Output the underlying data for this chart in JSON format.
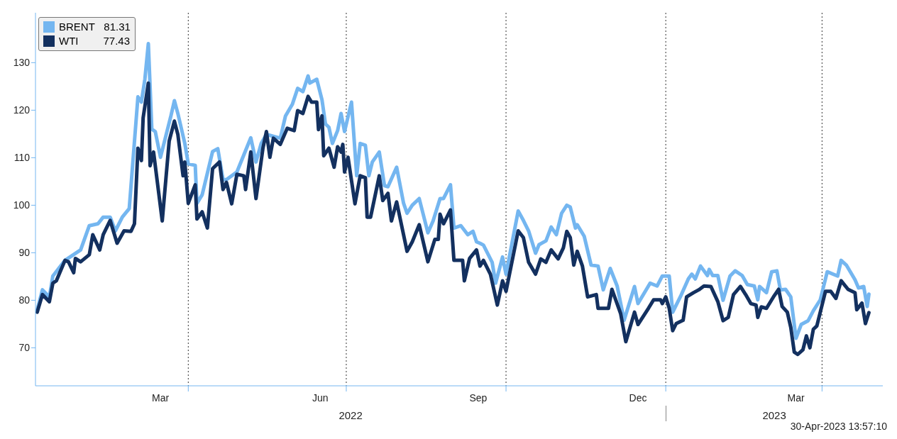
{
  "chart_data": {
    "type": "line",
    "xlim": [
      "2022-01-03",
      "2023-05-06"
    ],
    "xticks": [
      {
        "value": "2022-03-16",
        "label": "Mar"
      },
      {
        "value": "2022-04-01",
        "label": null
      },
      {
        "value": "2022-06-16",
        "label": "Jun"
      },
      {
        "value": "2022-07-01",
        "label": null
      },
      {
        "value": "2022-09-15",
        "label": "Sep"
      },
      {
        "value": "2022-10-01",
        "label": null
      },
      {
        "value": "2022-12-16",
        "label": "Dec"
      },
      {
        "value": "2023-01-01",
        "label": null
      },
      {
        "value": "2023-03-17",
        "label": "Mar"
      },
      {
        "value": "2023-04-01",
        "label": null
      }
    ],
    "ylim": [
      62,
      140.5
    ],
    "yticks": [
      70,
      80,
      90,
      100,
      110,
      120,
      130
    ],
    "grid": true,
    "legend": "top left",
    "annotations": [
      "2022",
      "2023",
      "81.31",
      "77.43",
      "30-Apr-2023 13:57:10"
    ],
    "series": [
      {
        "name": "BRENT",
        "color": "#74b6f0",
        "x": [
          "2022-01-04",
          "2022-01-07",
          "2022-01-11",
          "2022-01-13",
          "2022-01-20",
          "2022-01-29",
          "2022-02-03",
          "2022-02-08",
          "2022-02-11",
          "2022-02-15",
          "2022-02-18",
          "2022-02-22",
          "2022-02-26",
          "2022-03-03",
          "2022-03-05",
          "2022-03-07",
          "2022-03-09",
          "2022-03-11",
          "2022-03-13",
          "2022-03-16",
          "2022-03-22",
          "2022-03-24",
          "2022-03-26",
          "2022-03-30",
          "2022-04-01",
          "2022-04-05",
          "2022-04-06",
          "2022-04-09",
          "2022-04-15",
          "2022-04-18",
          "2022-04-21",
          "2022-04-23",
          "2022-04-29",
          "2022-05-07",
          "2022-05-10",
          "2022-05-13",
          "2022-05-16",
          "2022-05-20",
          "2022-05-24",
          "2022-05-27",
          "2022-05-31",
          "2022-06-03",
          "2022-06-06",
          "2022-06-09",
          "2022-06-10",
          "2022-06-14",
          "2022-06-17",
          "2022-06-19",
          "2022-06-21",
          "2022-06-23",
          "2022-06-26",
          "2022-06-28",
          "2022-06-30",
          "2022-07-04",
          "2022-07-07",
          "2022-07-09",
          "2022-07-12",
          "2022-07-14",
          "2022-07-16",
          "2022-07-20",
          "2022-07-23",
          "2022-07-25",
          "2022-07-30",
          "2022-08-03",
          "2022-08-05",
          "2022-08-08",
          "2022-08-12",
          "2022-08-17",
          "2022-08-20",
          "2022-08-24",
          "2022-08-26",
          "2022-08-30",
          "2022-09-01",
          "2022-09-05",
          "2022-09-09",
          "2022-09-12",
          "2022-09-14",
          "2022-09-16",
          "2022-09-18",
          "2022-09-23",
          "2022-09-25",
          "2022-09-29",
          "2022-10-01",
          "2022-10-08",
          "2022-10-11",
          "2022-10-14",
          "2022-10-18",
          "2022-10-20",
          "2022-10-24",
          "2022-10-27",
          "2022-10-30",
          "2022-11-02",
          "2022-11-05",
          "2022-11-07",
          "2022-11-10",
          "2022-11-11",
          "2022-11-15",
          "2022-11-19",
          "2022-11-23",
          "2022-11-26",
          "2022-11-30",
          "2022-12-04",
          "2022-12-08",
          "2022-12-14",
          "2022-12-16",
          "2022-12-23",
          "2022-12-27",
          "2022-12-30",
          "2023-01-03",
          "2023-01-05",
          "2023-01-10",
          "2023-01-14",
          "2023-01-16",
          "2023-01-18",
          "2023-01-21",
          "2023-01-25",
          "2023-01-26",
          "2023-01-28",
          "2023-01-31",
          "2023-02-03",
          "2023-02-07",
          "2023-02-10",
          "2023-02-14",
          "2023-02-17",
          "2023-02-21",
          "2023-02-23",
          "2023-02-24",
          "2023-02-28",
          "2023-03-03",
          "2023-03-06",
          "2023-03-08",
          "2023-03-11",
          "2023-03-14",
          "2023-03-17",
          "2023-03-20",
          "2023-03-24",
          "2023-03-27",
          "2023-03-31",
          "2023-04-04",
          "2023-04-10",
          "2023-04-12",
          "2023-04-15",
          "2023-04-20",
          "2023-04-22",
          "2023-04-25",
          "2023-04-27",
          "2023-04-28"
        ],
        "values": [
          78,
          82.2,
          80.7,
          85.1,
          88.4,
          90.6,
          95.7,
          96.1,
          97.5,
          97.5,
          94.6,
          97.5,
          99.3,
          122.8,
          121.7,
          126.5,
          134,
          116,
          115.5,
          110.1,
          118.8,
          122,
          119.3,
          113,
          108.7,
          108.4,
          100.4,
          102.2,
          111.3,
          111.9,
          105.4,
          105.4,
          107,
          114.2,
          109.1,
          113,
          114.9,
          114.5,
          114.1,
          118.8,
          121.3,
          124.6,
          123.9,
          127.2,
          125.7,
          126.5,
          122.2,
          117.1,
          116.4,
          113,
          115.7,
          119.3,
          115.5,
          121.7,
          106.2,
          113,
          112.6,
          106.2,
          109.1,
          111.2,
          104.1,
          103.9,
          108,
          100.4,
          98.3,
          100,
          101.4,
          94.2,
          96.7,
          101.4,
          101.4,
          104.3,
          95.2,
          95.7,
          93.8,
          94.5,
          92.3,
          92,
          91.6,
          88,
          83.6,
          89.1,
          85.5,
          98.8,
          96.8,
          94.6,
          89.9,
          91.7,
          92.5,
          95.4,
          93.8,
          98.3,
          100,
          99.6,
          95.2,
          95.9,
          93.5,
          87.4,
          87.2,
          82.2,
          86.7,
          83,
          75.8,
          82.9,
          79.3,
          83.6,
          83,
          85.1,
          85.1,
          77.5,
          81.2,
          84.5,
          85.5,
          84.5,
          87.2,
          85.2,
          86.5,
          85.2,
          85.2,
          80,
          85.1,
          86.2,
          85.2,
          83.3,
          83,
          80.1,
          82.9,
          81.6,
          86,
          86.2,
          82.2,
          82.3,
          80.7,
          72,
          74.9,
          75.7,
          77.8,
          80.1,
          86,
          85.1,
          88.4,
          87.4,
          84.3,
          82.6,
          82.9,
          78.7,
          81.3
        ]
      },
      {
        "name": "WTI",
        "color": "#13305f",
        "x": [
          "2022-01-04",
          "2022-01-07",
          "2022-01-11",
          "2022-01-13",
          "2022-01-15",
          "2022-01-20",
          "2022-01-22",
          "2022-01-25",
          "2022-01-26",
          "2022-01-29",
          "2022-02-03",
          "2022-02-05",
          "2022-02-09",
          "2022-02-11",
          "2022-02-15",
          "2022-02-19",
          "2022-02-23",
          "2022-02-27",
          "2022-03-01",
          "2022-03-03",
          "2022-03-05",
          "2022-03-06",
          "2022-03-09",
          "2022-03-10",
          "2022-03-12",
          "2022-03-17",
          "2022-03-21",
          "2022-03-24",
          "2022-03-26",
          "2022-03-29",
          "2022-03-30",
          "2022-04-01",
          "2022-04-05",
          "2022-04-06",
          "2022-04-09",
          "2022-04-12",
          "2022-04-15",
          "2022-04-19",
          "2022-04-21",
          "2022-04-23",
          "2022-04-26",
          "2022-04-29",
          "2022-05-03",
          "2022-05-04",
          "2022-05-07",
          "2022-05-10",
          "2022-05-14",
          "2022-05-16",
          "2022-05-18",
          "2022-05-20",
          "2022-05-24",
          "2022-05-28",
          "2022-06-01",
          "2022-06-03",
          "2022-06-06",
          "2022-06-09",
          "2022-06-11",
          "2022-06-14",
          "2022-06-15",
          "2022-06-17",
          "2022-06-18",
          "2022-06-21",
          "2022-06-24",
          "2022-06-26",
          "2022-06-28",
          "2022-06-29",
          "2022-06-30",
          "2022-07-02",
          "2022-07-06",
          "2022-07-09",
          "2022-07-12",
          "2022-07-13",
          "2022-07-15",
          "2022-07-20",
          "2022-07-22",
          "2022-07-25",
          "2022-07-27",
          "2022-07-30",
          "2022-08-05",
          "2022-08-08",
          "2022-08-12",
          "2022-08-17",
          "2022-08-21",
          "2022-08-23",
          "2022-08-24",
          "2022-08-26",
          "2022-08-30",
          "2022-09-01",
          "2022-09-06",
          "2022-09-07",
          "2022-09-10",
          "2022-09-14",
          "2022-09-16",
          "2022-09-18",
          "2022-09-22",
          "2022-09-26",
          "2022-09-29",
          "2022-10-01",
          "2022-10-08",
          "2022-10-11",
          "2022-10-14",
          "2022-10-18",
          "2022-10-21",
          "2022-10-24",
          "2022-10-27",
          "2022-10-31",
          "2022-11-03",
          "2022-11-05",
          "2022-11-07",
          "2022-11-09",
          "2022-11-11",
          "2022-11-14",
          "2022-11-17",
          "2022-11-22",
          "2022-11-23",
          "2022-11-29",
          "2022-12-01",
          "2022-12-06",
          "2022-12-09",
          "2022-12-14",
          "2022-12-16",
          "2022-12-22",
          "2022-12-25",
          "2022-12-29",
          "2022-12-30",
          "2023-01-01",
          "2023-01-03",
          "2023-01-05",
          "2023-01-07",
          "2023-01-11",
          "2023-01-13",
          "2023-01-17",
          "2023-01-20",
          "2023-01-23",
          "2023-01-27",
          "2023-01-31",
          "2023-02-03",
          "2023-02-06",
          "2023-02-09",
          "2023-02-13",
          "2023-02-16",
          "2023-02-19",
          "2023-02-22",
          "2023-02-23",
          "2023-02-25",
          "2023-02-28",
          "2023-03-04",
          "2023-03-07",
          "2023-03-09",
          "2023-03-12",
          "2023-03-14",
          "2023-03-16",
          "2023-03-18",
          "2023-03-21",
          "2023-03-23",
          "2023-03-25",
          "2023-03-27",
          "2023-03-29",
          "2023-04-03",
          "2023-04-06",
          "2023-04-09",
          "2023-04-12",
          "2023-04-16",
          "2023-04-20",
          "2023-04-21",
          "2023-04-24",
          "2023-04-26",
          "2023-04-28"
        ],
        "values": [
          77.5,
          81.2,
          79.7,
          83.6,
          84.1,
          88.4,
          88.1,
          85.8,
          88.8,
          88.1,
          89.6,
          93.8,
          90.6,
          93.8,
          96.8,
          92,
          94.6,
          94.5,
          96.1,
          112,
          109.4,
          118.4,
          125.7,
          108.3,
          111.2,
          96.7,
          113.5,
          117.7,
          114.9,
          106.2,
          109.1,
          100.4,
          104.3,
          97.1,
          98.6,
          95.2,
          107.7,
          109.1,
          103.3,
          104.8,
          100.3,
          106.5,
          106.2,
          103.3,
          111.2,
          101.4,
          112,
          115.5,
          110.1,
          114.1,
          112.8,
          116.2,
          115.7,
          119.9,
          119.3,
          122.9,
          121.7,
          121.7,
          115.9,
          118.8,
          110.4,
          112,
          108,
          112.3,
          111.2,
          112.8,
          107,
          110.1,
          100.3,
          106.2,
          105.8,
          97.5,
          97.5,
          106.2,
          101,
          102.5,
          96.7,
          100.7,
          90.3,
          92.3,
          95.9,
          88.1,
          92.8,
          92.8,
          98.1,
          96.1,
          99,
          88.4,
          88.4,
          84.1,
          88.8,
          90.6,
          87.2,
          88.4,
          85.5,
          79,
          84.1,
          81.9,
          94.6,
          93.2,
          88,
          85.5,
          88.7,
          88,
          90.6,
          88.7,
          91,
          94.5,
          93.2,
          87.4,
          90.3,
          87.2,
          80.7,
          81.2,
          78.3,
          78.3,
          82.3,
          77.2,
          71.3,
          77.5,
          74.9,
          78.3,
          80.1,
          80.1,
          79.3,
          80.7,
          78.3,
          73.6,
          75.1,
          75.8,
          80.7,
          81.6,
          82.2,
          83,
          82.9,
          79.7,
          75.7,
          76.4,
          81.2,
          82.9,
          81.2,
          79.3,
          79,
          76.4,
          78.6,
          78.3,
          80.7,
          82.3,
          78.7,
          77.5,
          74.3,
          69.1,
          68.6,
          69.6,
          72.5,
          70,
          73.9,
          74.6,
          81.9,
          81.9,
          80.4,
          84.1,
          82.3,
          81.6,
          78,
          79.4,
          75.1,
          77.4
        ]
      }
    ]
  }
}
